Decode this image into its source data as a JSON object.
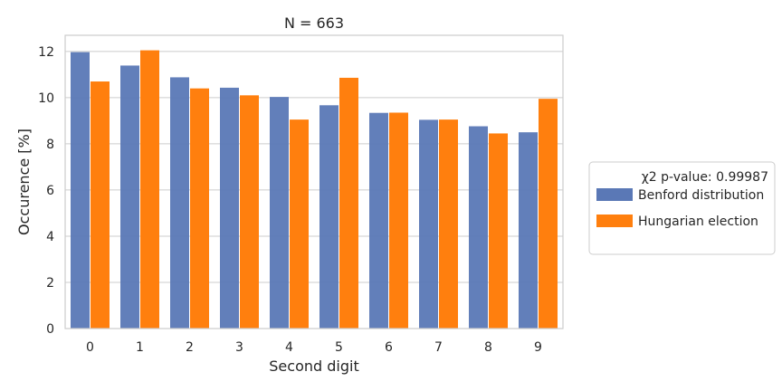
{
  "chart_data": {
    "type": "bar",
    "title": "N = 663",
    "xlabel": "Second digit",
    "ylabel": "Occurence [%]",
    "categories": [
      "0",
      "1",
      "2",
      "3",
      "4",
      "5",
      "6",
      "7",
      "8",
      "9"
    ],
    "yticks": [
      "0",
      "2",
      "4",
      "6",
      "8",
      "10",
      "12"
    ],
    "ylim": [
      0,
      12.7
    ],
    "grid": "horizontal",
    "legend": {
      "placement": "right",
      "title": "χ2 p-value: 0.99987"
    },
    "series": [
      {
        "name": "Benford distribution",
        "color": "#5a78b6",
        "values": [
          11.97,
          11.39,
          10.88,
          10.43,
          10.03,
          9.67,
          9.34,
          9.04,
          8.76,
          8.5
        ]
      },
      {
        "name": "Hungarian election",
        "color": "#ff7f0e",
        "values": [
          10.7,
          12.05,
          10.4,
          10.1,
          9.05,
          10.86,
          9.35,
          9.05,
          8.45,
          9.95
        ]
      }
    ]
  }
}
